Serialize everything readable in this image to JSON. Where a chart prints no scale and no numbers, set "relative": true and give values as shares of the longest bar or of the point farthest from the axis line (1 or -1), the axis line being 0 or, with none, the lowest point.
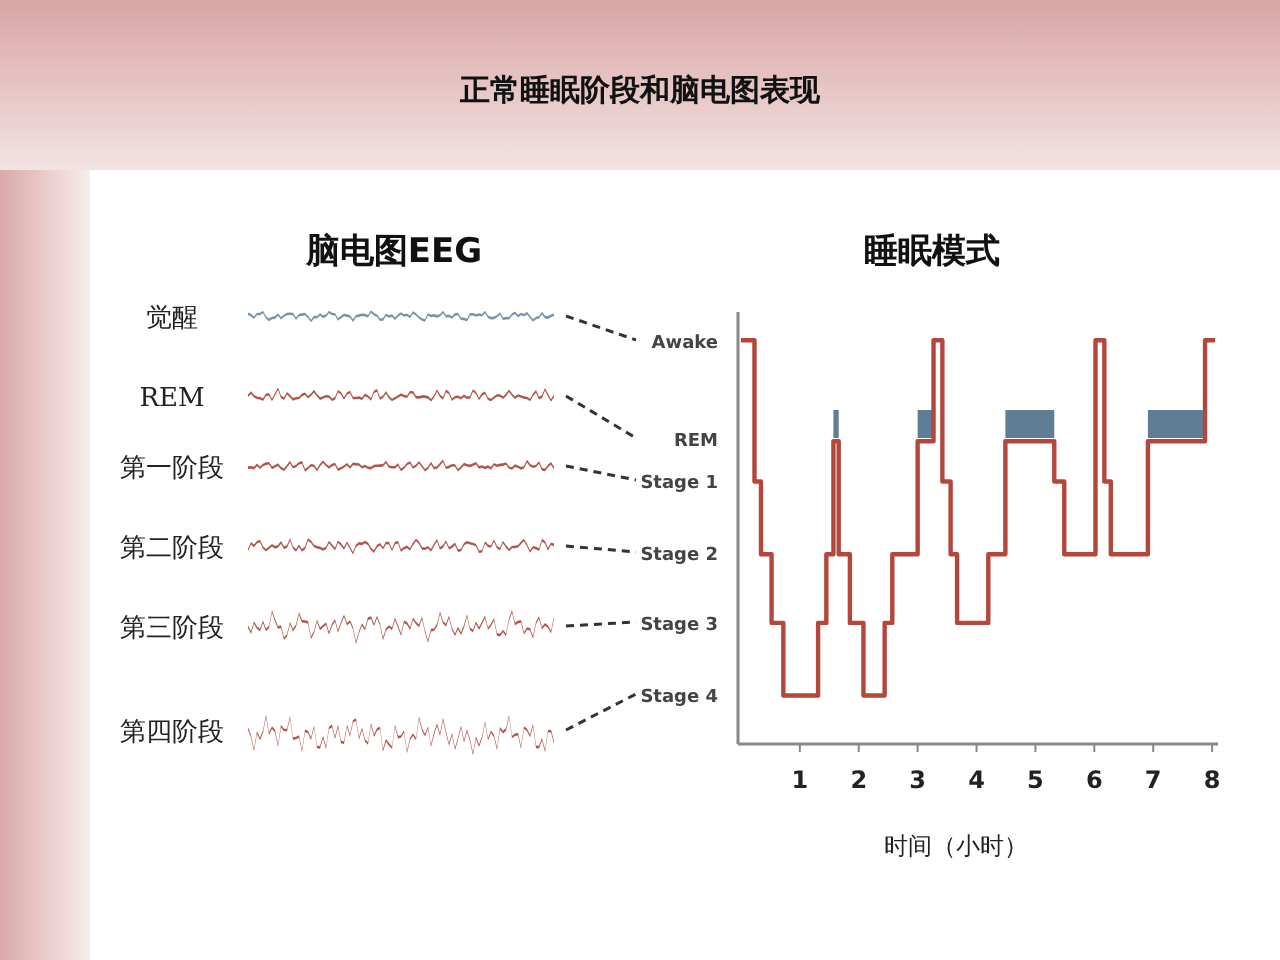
{
  "chart_data": {
    "type": "step",
    "title": "正常睡眠阶段和脑电图表现",
    "subtitle": "睡眠模式",
    "xlabel": "时间（小时）",
    "relative": true,
    "annotations": [
      "脑电图EEG",
      "觉醒",
      "REM",
      "第一阶段",
      "第二阶段",
      "第三阶段",
      "第四阶段",
      "Awake",
      "REM",
      "Stage 1",
      "Stage 2",
      "Stage 3",
      "Stage 4"
    ],
    "bands": [
      {
        "axis": "x",
        "from": 1.57,
        "to": 1.66,
        "color": "#5f7d95"
      },
      {
        "axis": "x",
        "from": 3.0,
        "to": 3.27,
        "color": "#5f7d95"
      },
      {
        "axis": "x",
        "from": 4.49,
        "to": 5.32,
        "color": "#5f7d95"
      },
      {
        "axis": "x",
        "from": 6.91,
        "to": 7.88,
        "color": "#5f7d95"
      }
    ],
    "xlim": [
      -0.05,
      8.1
    ],
    "xticks": [
      1,
      2,
      3,
      4,
      5,
      6,
      7,
      8
    ],
    "grid": false,
    "series": [
      {
        "color": "#b4473c",
        "x": [
          0,
          0.23,
          0.34,
          0.52,
          0.72,
          1.31,
          1.45,
          1.57,
          1.66,
          1.85,
          2.08,
          2.44,
          2.57,
          3.0,
          3.27,
          3.42,
          3.56,
          3.67,
          4.2,
          4.49,
          5.32,
          5.49,
          6.02,
          6.17,
          6.28,
          6.91,
          7.88,
          8.05
        ],
        "values": [
          1.0,
          0.65,
          0.47,
          0.3,
          0.12,
          0.3,
          0.47,
          0.75,
          0.47,
          0.3,
          0.12,
          0.3,
          0.47,
          0.75,
          1.0,
          0.65,
          0.47,
          0.3,
          0.47,
          0.75,
          0.65,
          0.47,
          1.0,
          0.65,
          0.47,
          0.75,
          1.0,
          1.0
        ]
      }
    ]
  }
}
